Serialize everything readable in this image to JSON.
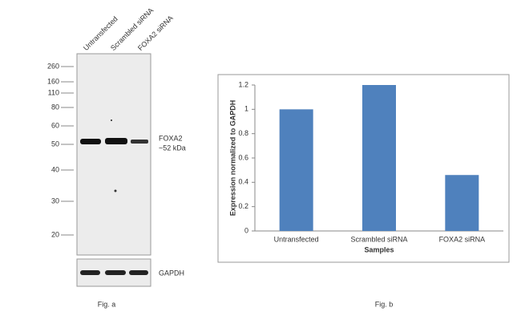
{
  "blot": {
    "lanes": [
      "Untransfected",
      "Scrambled siRNA",
      "FOXA2 siRNA"
    ],
    "markers": [
      260,
      160,
      110,
      80,
      60,
      50,
      40,
      30,
      20
    ],
    "band_label": "FOXA2",
    "band_size": "~52 kDa",
    "control_label": "GAPDH",
    "caption": "Fig. a"
  },
  "chart_data": {
    "type": "bar",
    "categories": [
      "Untransfected",
      "Scrambled siRNA",
      "FOXA2 siRNA"
    ],
    "values": [
      1.0,
      1.2,
      0.46
    ],
    "color": "#4f81bd",
    "ylabel": "Expression normalized to GAPDH",
    "xlabel": "Samples",
    "ylim": [
      0,
      1.2
    ],
    "yticks": [
      0,
      0.2,
      0.4,
      0.6,
      0.8,
      1,
      1.2
    ],
    "caption": "Fig. b"
  }
}
